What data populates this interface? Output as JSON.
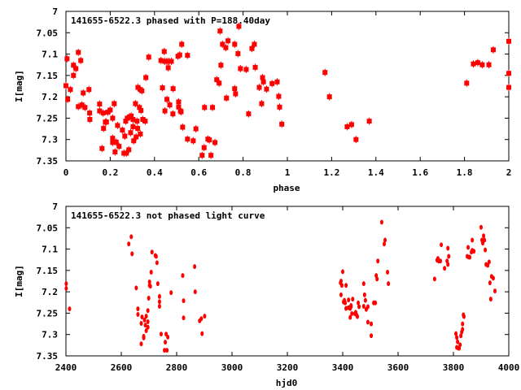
{
  "chart_data": [
    {
      "type": "scatter",
      "title": "141655-6522.3 phased with P=188.40day",
      "xlabel": "phase",
      "ylabel": "I[mag]",
      "xlim": [
        0,
        2
      ],
      "ylim": [
        7.35,
        7
      ],
      "xticks": [
        0,
        0.2,
        0.4,
        0.6,
        0.8,
        1,
        1.2,
        1.4,
        1.6,
        1.8,
        2
      ],
      "xtick_labels": [
        "0",
        "0.2",
        "0.4",
        "0.6",
        "0.8",
        "1",
        "1.2",
        "1.4",
        "1.6",
        "1.8",
        "2"
      ],
      "yticks": [
        7,
        7.05,
        7.1,
        7.15,
        7.2,
        7.25,
        7.3,
        7.35
      ],
      "ytick_labels": [
        "7",
        "7.05",
        "7.1",
        "7.15",
        "7.2",
        "7.25",
        "7.3",
        "7.35"
      ],
      "grid": false,
      "color": "#ff0000",
      "points": [
        [
          0,
          7.174
        ],
        [
          0.005,
          7.111
        ],
        [
          0.008,
          7.206
        ],
        [
          0.02,
          7.183
        ],
        [
          0.034,
          7.126
        ],
        [
          0.034,
          7.15
        ],
        [
          0.045,
          7.134
        ],
        [
          0.056,
          7.096
        ],
        [
          0.056,
          7.223
        ],
        [
          0.067,
          7.115
        ],
        [
          0.072,
          7.219
        ],
        [
          0.078,
          7.191
        ],
        [
          0.086,
          7.225
        ],
        [
          0.104,
          7.183
        ],
        [
          0.107,
          7.238
        ],
        [
          0.108,
          7.253
        ],
        [
          0.152,
          7.217
        ],
        [
          0.152,
          7.233
        ],
        [
          0.163,
          7.321
        ],
        [
          0.168,
          7.238
        ],
        [
          0.17,
          7.274
        ],
        [
          0.178,
          7.259
        ],
        [
          0.183,
          7.259
        ],
        [
          0.189,
          7.236
        ],
        [
          0.2,
          7.231
        ],
        [
          0.211,
          7.25
        ],
        [
          0.211,
          7.297
        ],
        [
          0.211,
          7.307
        ],
        [
          0.218,
          7.216
        ],
        [
          0.222,
          7.329
        ],
        [
          0.227,
          7.306
        ],
        [
          0.233,
          7.267
        ],
        [
          0.24,
          7.316
        ],
        [
          0.255,
          7.278
        ],
        [
          0.262,
          7.332
        ],
        [
          0.266,
          7.292
        ],
        [
          0.27,
          7.257
        ],
        [
          0.273,
          7.332
        ],
        [
          0.277,
          7.25
        ],
        [
          0.284,
          7.324
        ],
        [
          0.288,
          7.247
        ],
        [
          0.292,
          7.284
        ],
        [
          0.295,
          7.245
        ],
        [
          0.303,
          7.253
        ],
        [
          0.303,
          7.27
        ],
        [
          0.306,
          7.303
        ],
        [
          0.314,
          7.216
        ],
        [
          0.317,
          7.294
        ],
        [
          0.321,
          7.257
        ],
        [
          0.324,
          7.274
        ],
        [
          0.325,
          7.178
        ],
        [
          0.332,
          7.225
        ],
        [
          0.336,
          7.287
        ],
        [
          0.336,
          7.183
        ],
        [
          0.339,
          7.232
        ],
        [
          0.343,
          7.186
        ],
        [
          0.347,
          7.253
        ],
        [
          0.358,
          7.257
        ],
        [
          0.361,
          7.155
        ],
        [
          0.374,
          7.107
        ],
        [
          0.429,
          7.115
        ],
        [
          0.436,
          7.179
        ],
        [
          0.444,
          7.094
        ],
        [
          0.446,
          7.117
        ],
        [
          0.447,
          7.233
        ],
        [
          0.456,
          7.117
        ],
        [
          0.456,
          7.206
        ],
        [
          0.462,
          7.132
        ],
        [
          0.466,
          7.117
        ],
        [
          0.469,
          7.219
        ],
        [
          0.476,
          7.117
        ],
        [
          0.483,
          7.24
        ],
        [
          0.484,
          7.181
        ],
        [
          0.506,
          7.105
        ],
        [
          0.509,
          7.212
        ],
        [
          0.509,
          7.224
        ],
        [
          0.514,
          7.102
        ],
        [
          0.517,
          7.233
        ],
        [
          0.52,
          7.235
        ],
        [
          0.523,
          7.077
        ],
        [
          0.527,
          7.271
        ],
        [
          0.549,
          7.103
        ],
        [
          0.549,
          7.299
        ],
        [
          0.575,
          7.303
        ],
        [
          0.587,
          7.275
        ],
        [
          0.615,
          7.337
        ],
        [
          0.624,
          7.319
        ],
        [
          0.626,
          7.225
        ],
        [
          0.641,
          7.299
        ],
        [
          0.648,
          7.301
        ],
        [
          0.655,
          7.337
        ],
        [
          0.662,
          7.225
        ],
        [
          0.673,
          7.307
        ],
        [
          0.681,
          7.16
        ],
        [
          0.692,
          7.168
        ],
        [
          0.696,
          7.046
        ],
        [
          0.7,
          7.126
        ],
        [
          0.707,
          7.077
        ],
        [
          0.722,
          7.085
        ],
        [
          0.725,
          7.203
        ],
        [
          0.732,
          7.069
        ],
        [
          0.762,
          7.077
        ],
        [
          0.762,
          7.181
        ],
        [
          0.766,
          7.193
        ],
        [
          0.777,
          7.099
        ],
        [
          0.781,
          7.035
        ],
        [
          0.788,
          7.134
        ],
        [
          0.814,
          7.136
        ],
        [
          0.825,
          7.24
        ],
        [
          0.84,
          7.087
        ],
        [
          0.851,
          7.077
        ],
        [
          0.855,
          7.131
        ],
        [
          0.873,
          7.178
        ],
        [
          0.884,
          7.216
        ],
        [
          0.888,
          7.155
        ],
        [
          0.892,
          7.165
        ],
        [
          0.906,
          7.182
        ],
        [
          0.931,
          7.169
        ],
        [
          0.954,
          7.165
        ],
        [
          0.961,
          7.199
        ],
        [
          0.965,
          7.224
        ],
        [
          0.975,
          7.264
        ],
        [
          1.17,
          7.143
        ],
        [
          1.19,
          7.2
        ],
        [
          1.27,
          7.27
        ],
        [
          1.29,
          7.265
        ],
        [
          1.31,
          7.3
        ],
        [
          1.37,
          7.257
        ],
        [
          1.81,
          7.168
        ],
        [
          1.84,
          7.123
        ],
        [
          1.86,
          7.12
        ],
        [
          1.88,
          7.125
        ],
        [
          1.91,
          7.125
        ],
        [
          1.93,
          7.09
        ],
        [
          2.0,
          7.07
        ],
        [
          2.0,
          7.145
        ],
        [
          2.0,
          7.178
        ]
      ]
    },
    {
      "type": "scatter",
      "title": "141655-6522.3 not phased light curve",
      "xlabel": "hjd0",
      "ylabel": "I[mag]",
      "xlim": [
        2400,
        4000
      ],
      "ylim": [
        7.35,
        7
      ],
      "xticks": [
        2400,
        2600,
        2800,
        3000,
        3200,
        3400,
        3600,
        3800,
        4000
      ],
      "xtick_labels": [
        "2400",
        "2600",
        "2800",
        "3000",
        "3200",
        "3400",
        "3600",
        "3800",
        "4000"
      ],
      "yticks": [
        7,
        7.05,
        7.1,
        7.15,
        7.2,
        7.25,
        7.3,
        7.35
      ],
      "ytick_labels": [
        "7",
        "7.05",
        "7.1",
        "7.15",
        "7.2",
        "7.25",
        "7.3",
        "7.35"
      ],
      "grid": false,
      "color": "#ff0000",
      "points": [
        [
          2401,
          7.181
        ],
        [
          2401,
          7.192
        ],
        [
          2413,
          7.24
        ],
        [
          2627,
          7.088
        ],
        [
          2636,
          7.071
        ],
        [
          2639,
          7.111
        ],
        [
          2654,
          7.191
        ],
        [
          2660,
          7.24
        ],
        [
          2660,
          7.253
        ],
        [
          2672,
          7.274
        ],
        [
          2672,
          7.322
        ],
        [
          2675,
          7.259
        ],
        [
          2681,
          7.304
        ],
        [
          2681,
          7.308
        ],
        [
          2684,
          7.266
        ],
        [
          2687,
          7.278
        ],
        [
          2690,
          7.257
        ],
        [
          2690,
          7.291
        ],
        [
          2696,
          7.244
        ],
        [
          2696,
          7.27
        ],
        [
          2696,
          7.283
        ],
        [
          2699,
          7.215
        ],
        [
          2702,
          7.177
        ],
        [
          2702,
          7.185
        ],
        [
          2705,
          7.187
        ],
        [
          2708,
          7.154
        ],
        [
          2711,
          7.107
        ],
        [
          2723,
          7.115
        ],
        [
          2726,
          7.117
        ],
        [
          2729,
          7.132
        ],
        [
          2732,
          7.181
        ],
        [
          2738,
          7.211
        ],
        [
          2738,
          7.223
        ],
        [
          2738,
          7.234
        ],
        [
          2744,
          7.299
        ],
        [
          2759,
          7.318
        ],
        [
          2756,
          7.337
        ],
        [
          2762,
          7.299
        ],
        [
          2765,
          7.337
        ],
        [
          2768,
          7.306
        ],
        [
          2780,
          7.202
        ],
        [
          2822,
          7.162
        ],
        [
          2825,
          7.221
        ],
        [
          2825,
          7.261
        ],
        [
          2865,
          7.141
        ],
        [
          2867,
          7.2
        ],
        [
          2883,
          7.268
        ],
        [
          2889,
          7.263
        ],
        [
          2892,
          7.298
        ],
        [
          2901,
          7.257
        ],
        [
          3392,
          7.179
        ],
        [
          3394,
          7.175
        ],
        [
          3397,
          7.185
        ],
        [
          3400,
          7.153
        ],
        [
          3394,
          7.207
        ],
        [
          3406,
          7.22
        ],
        [
          3403,
          7.224
        ],
        [
          3409,
          7.226
        ],
        [
          3412,
          7.185
        ],
        [
          3412,
          7.239
        ],
        [
          3421,
          7.219
        ],
        [
          3421,
          7.237
        ],
        [
          3427,
          7.26
        ],
        [
          3427,
          7.239
        ],
        [
          3430,
          7.232
        ],
        [
          3430,
          7.235
        ],
        [
          3433,
          7.251
        ],
        [
          3436,
          7.217
        ],
        [
          3444,
          7.251
        ],
        [
          3447,
          7.248
        ],
        [
          3450,
          7.254
        ],
        [
          3453,
          7.258
        ],
        [
          3456,
          7.226
        ],
        [
          3459,
          7.235
        ],
        [
          3476,
          7.181
        ],
        [
          3476,
          7.234
        ],
        [
          3479,
          7.207
        ],
        [
          3482,
          7.22
        ],
        [
          3485,
          7.241
        ],
        [
          3491,
          7.235
        ],
        [
          3491,
          7.271
        ],
        [
          3503,
          7.275
        ],
        [
          3503,
          7.303
        ],
        [
          3512,
          7.226
        ],
        [
          3518,
          7.226
        ],
        [
          3521,
          7.162
        ],
        [
          3524,
          7.17
        ],
        [
          3527,
          7.128
        ],
        [
          3541,
          7.037
        ],
        [
          3550,
          7.088
        ],
        [
          3553,
          7.079
        ],
        [
          3562,
          7.154
        ],
        [
          3565,
          7.181
        ],
        [
          3732,
          7.17
        ],
        [
          3741,
          7.126
        ],
        [
          3744,
          7.122
        ],
        [
          3747,
          7.128
        ],
        [
          3753,
          7.128
        ],
        [
          3756,
          7.09
        ],
        [
          3768,
          7.145
        ],
        [
          3777,
          7.128
        ],
        [
          3780,
          7.098
        ],
        [
          3780,
          7.136
        ],
        [
          3783,
          7.117
        ],
        [
          3809,
          7.298
        ],
        [
          3812,
          7.307
        ],
        [
          3815,
          7.317
        ],
        [
          3812,
          7.33
        ],
        [
          3818,
          7.332
        ],
        [
          3821,
          7.332
        ],
        [
          3824,
          7.324
        ],
        [
          3827,
          7.303
        ],
        [
          3830,
          7.294
        ],
        [
          3833,
          7.288
        ],
        [
          3833,
          7.275
        ],
        [
          3836,
          7.254
        ],
        [
          3838,
          7.258
        ],
        [
          3850,
          7.117
        ],
        [
          3853,
          7.096
        ],
        [
          3856,
          7.119
        ],
        [
          3859,
          7.119
        ],
        [
          3865,
          7.107
        ],
        [
          3868,
          7.079
        ],
        [
          3868,
          7.103
        ],
        [
          3874,
          7.105
        ],
        [
          3900,
          7.049
        ],
        [
          3903,
          7.079
        ],
        [
          3906,
          7.086
        ],
        [
          3909,
          7.069
        ],
        [
          3912,
          7.079
        ],
        [
          3915,
          7.102
        ],
        [
          3918,
          7.136
        ],
        [
          3924,
          7.138
        ],
        [
          3929,
          7.13
        ],
        [
          3932,
          7.179
        ],
        [
          3935,
          7.217
        ],
        [
          3938,
          7.164
        ],
        [
          3944,
          7.168
        ],
        [
          3950,
          7.198
        ]
      ]
    }
  ]
}
